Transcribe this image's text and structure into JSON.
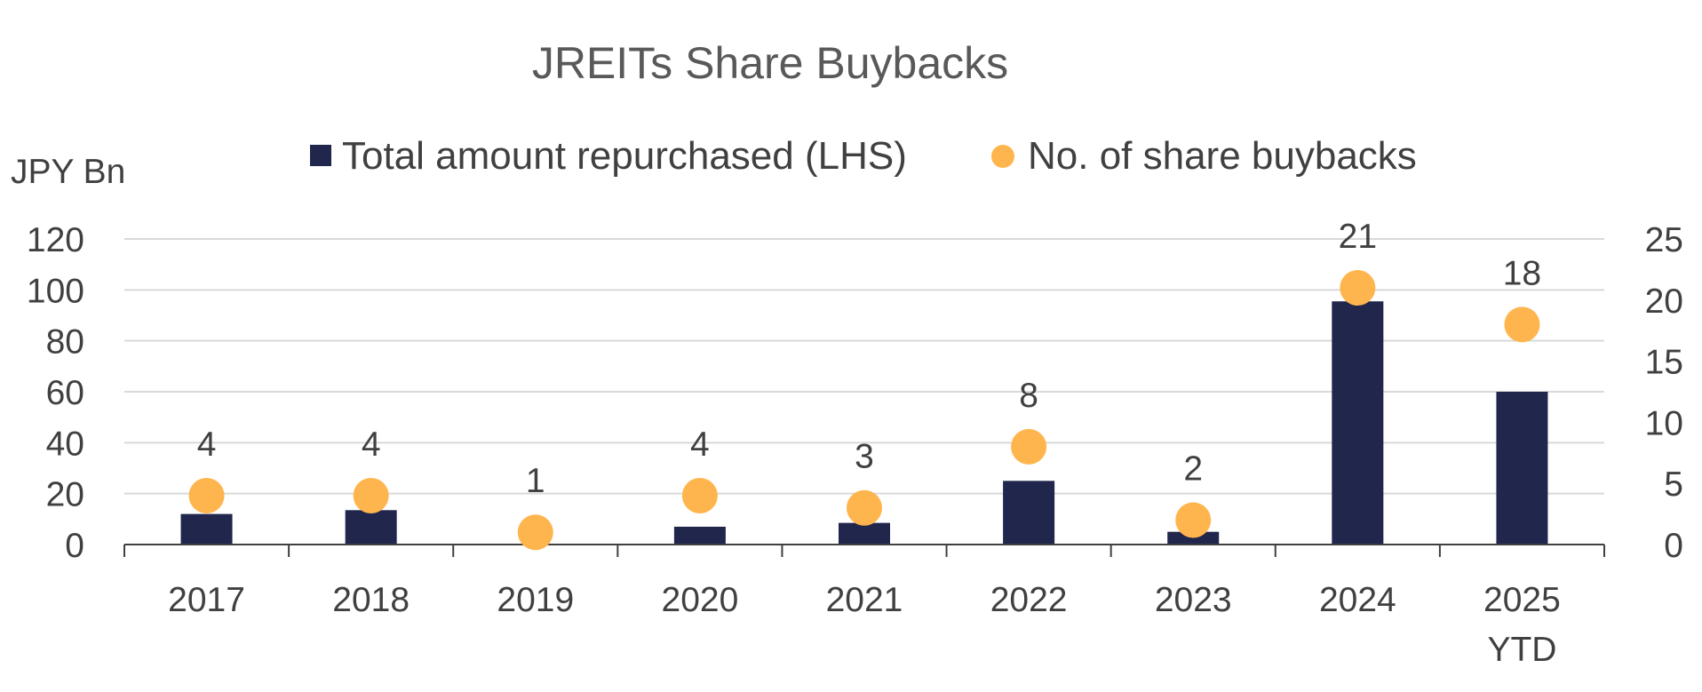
{
  "chart_data": {
    "type": "bar",
    "title": "JREITs Share Buybacks",
    "ylabel": "JPY Bn",
    "categories": [
      "2017",
      "2018",
      "2019",
      "2020",
      "2021",
      "2022",
      "2023",
      "2024",
      "2025\nYTD"
    ],
    "series": [
      {
        "name": "Total amount repurchased (LHS)",
        "type": "bar",
        "axis": "left",
        "values": [
          12,
          13.5,
          0,
          7,
          8.5,
          25,
          5,
          95.5,
          60
        ]
      },
      {
        "name": "No. of share buybacks",
        "type": "scatter",
        "axis": "right",
        "values": [
          4,
          4,
          1,
          4,
          3,
          8,
          2,
          21,
          18
        ]
      }
    ],
    "ylim": [
      0,
      120
    ],
    "y_ticks": [
      0,
      20,
      40,
      60,
      80,
      100,
      120
    ],
    "y2lim": [
      0,
      25
    ],
    "y2_ticks": [
      0,
      5,
      10,
      15,
      20,
      25
    ],
    "grid": true,
    "legend": "top-center",
    "colors": {
      "bar": "#20264c",
      "marker": "#ffb54d",
      "grid": "#d9d9d9",
      "text": "#404040"
    }
  }
}
